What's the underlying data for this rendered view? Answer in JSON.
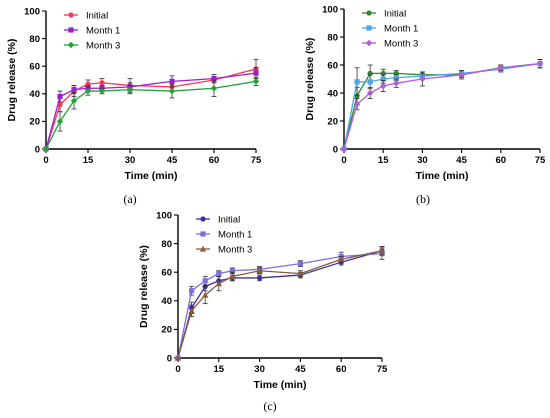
{
  "chart_data": [
    {
      "type": "line",
      "panel_label": "(a)",
      "xlabel": "Time (min)",
      "ylabel": "Drug release (%)",
      "x": [
        0,
        5,
        10,
        15,
        20,
        30,
        45,
        60,
        75
      ],
      "xticks": [
        0,
        15,
        30,
        45,
        60,
        75
      ],
      "yticks": [
        0,
        20,
        40,
        60,
        80,
        100
      ],
      "xlim": [
        0,
        75
      ],
      "ylim": [
        0,
        100
      ],
      "legend_position": "top-left",
      "series": [
        {
          "name": "Initial",
          "color": "#ff3355",
          "marker": "circle",
          "values": [
            0,
            32,
            42,
            47,
            48,
            46,
            45,
            50,
            58
          ],
          "errors": [
            0,
            5,
            4,
            3,
            3,
            5,
            3,
            2,
            7
          ]
        },
        {
          "name": "Month 1",
          "color": "#9b1fd1",
          "marker": "square",
          "values": [
            0,
            38,
            43,
            44,
            44,
            45,
            49,
            51,
            55
          ],
          "errors": [
            0,
            4,
            3,
            2,
            2,
            3,
            4,
            3,
            4
          ]
        },
        {
          "name": "Month 3",
          "color": "#23a335",
          "marker": "diamond",
          "values": [
            0,
            20,
            35,
            42,
            42,
            43,
            42,
            44,
            49
          ],
          "errors": [
            0,
            7,
            6,
            3,
            2,
            3,
            5,
            6,
            3
          ]
        }
      ]
    },
    {
      "type": "line",
      "panel_label": "(b)",
      "xlabel": "Time (min)",
      "ylabel": "Drug release (%)",
      "x": [
        0,
        5,
        10,
        15,
        20,
        30,
        45,
        60,
        75
      ],
      "xticks": [
        0,
        15,
        30,
        45,
        60,
        75
      ],
      "yticks": [
        0,
        20,
        40,
        60,
        80,
        100
      ],
      "xlim": [
        0,
        75
      ],
      "ylim": [
        0,
        100
      ],
      "legend_position": "top-left",
      "series": [
        {
          "name": "Initial",
          "color": "#2f8a2f",
          "marker": "circle",
          "values": [
            0,
            38,
            54,
            54,
            54,
            53,
            53,
            58,
            61
          ],
          "errors": [
            0,
            6,
            6,
            3,
            2,
            2,
            2,
            2,
            3
          ]
        },
        {
          "name": "Month 1",
          "color": "#4aa8e8",
          "marker": "square",
          "values": [
            0,
            48,
            48,
            50,
            51,
            52,
            54,
            57,
            61
          ],
          "errors": [
            0,
            10,
            5,
            3,
            2,
            2,
            2,
            2,
            3
          ]
        },
        {
          "name": "Month 3",
          "color": "#b55cd4",
          "marker": "diamond",
          "values": [
            0,
            32,
            40,
            45,
            47,
            50,
            53,
            58,
            61
          ],
          "errors": [
            0,
            4,
            4,
            4,
            3,
            5,
            3,
            2,
            3
          ]
        }
      ]
    },
    {
      "type": "line",
      "panel_label": "(c)",
      "xlabel": "Time (min)",
      "ylabel": "Drug release (%)",
      "x": [
        0,
        5,
        10,
        15,
        20,
        30,
        45,
        60,
        75
      ],
      "xticks": [
        0,
        15,
        30,
        45,
        60,
        75
      ],
      "yticks": [
        0,
        20,
        40,
        60,
        80,
        100
      ],
      "xlim": [
        0,
        75
      ],
      "ylim": [
        0,
        100
      ],
      "legend_position": "top-left",
      "series": [
        {
          "name": "Initial",
          "color": "#3b2ea3",
          "marker": "circle",
          "values": [
            0,
            35,
            50,
            54,
            56,
            56,
            58,
            67,
            75
          ],
          "errors": [
            0,
            4,
            3,
            3,
            2,
            2,
            2,
            2,
            3
          ]
        },
        {
          "name": "Month 1",
          "color": "#7b6fe0",
          "marker": "square",
          "values": [
            0,
            47,
            54,
            59,
            61,
            62,
            66,
            71,
            73
          ],
          "errors": [
            0,
            3,
            3,
            2,
            2,
            2,
            2,
            3,
            4
          ]
        },
        {
          "name": "Month 3",
          "color": "#8b5a3c",
          "marker": "triangle",
          "values": [
            0,
            33,
            44,
            52,
            57,
            61,
            59,
            69,
            75
          ],
          "errors": [
            0,
            4,
            6,
            5,
            3,
            2,
            2,
            2,
            3
          ]
        }
      ]
    }
  ]
}
